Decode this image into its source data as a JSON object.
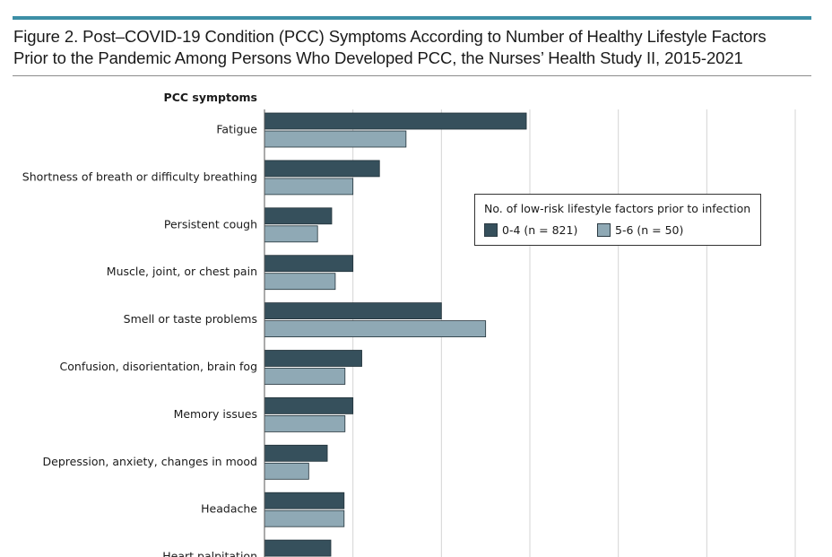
{
  "figure": {
    "title_line1": "Figure 2. Post–COVID-19 Condition (PCC) Symptoms According to Number of Healthy Lifestyle Factors",
    "title_line2": "Prior to the Pandemic Among Persons Who Developed PCC, the Nurses’ Health Study II, 2015-2021"
  },
  "chart_data": {
    "type": "bar",
    "orientation": "horizontal",
    "title": "Post–COVID-19 Condition (PCC) Symptoms According to Number of Healthy Lifestyle Factors Prior to the Pandemic Among Persons Who Developed PCC, the Nurses’ Health Study II, 2015-2021",
    "ylabel": "PCC symptoms",
    "xlabel": "",
    "xlim": [
      0,
      60
    ],
    "grid_x": [
      0,
      10,
      20,
      30,
      40,
      50,
      60
    ],
    "categories": [
      "Fatigue",
      "Shortness of breath or difficulty breathing",
      "Persistent cough",
      "Muscle, joint, or chest pain",
      "Smell or taste problems",
      "Confusion, disorientation, brain fog",
      "Memory issues",
      "Depression, anxiety, changes in mood",
      "Headache",
      "Heart palpitation"
    ],
    "series": [
      {
        "name": "0-4 (n = 821)",
        "color": "#36505c",
        "values": [
          29.6,
          13.0,
          7.6,
          10.0,
          20.0,
          11.0,
          10.0,
          7.1,
          9.0,
          7.5
        ]
      },
      {
        "name": "5-6 (n = 50)",
        "color": "#8fa9b5",
        "values": [
          16.0,
          10.0,
          6.0,
          8.0,
          25.0,
          9.1,
          9.1,
          5.0,
          9.0,
          null
        ]
      }
    ],
    "legend": {
      "title": "No. of low-risk lifestyle factors prior to infection",
      "position": "center-right"
    }
  }
}
